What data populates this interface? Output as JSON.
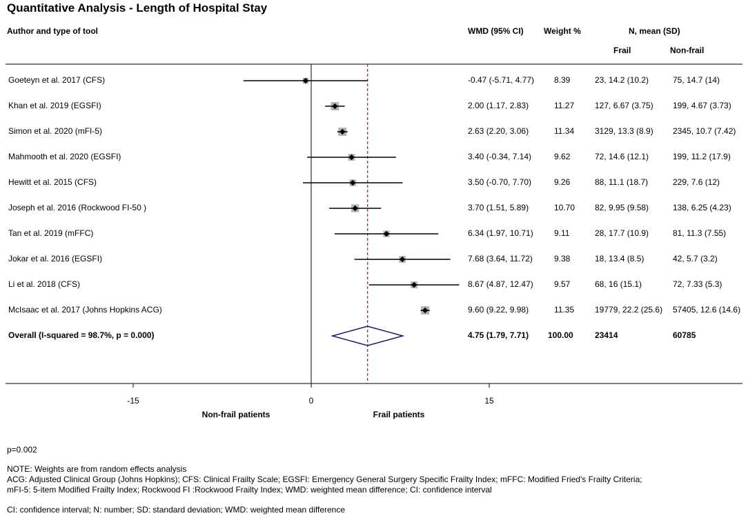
{
  "chart_data": {
    "type": "forest",
    "title": "Quantitative Analysis - Length of Hospital Stay",
    "headers": {
      "author": "Author and type of tool",
      "wmd": "WMD (95% CI)",
      "weight": "Weight %",
      "n_mean": "N, mean (SD)",
      "frail": "Frail",
      "nonfrail": "Non-frail"
    },
    "studies": [
      {
        "label": "Goeteyn et al. 2017 (CFS)",
        "wmd": -0.47,
        "lo": -5.71,
        "hi": 4.77,
        "wmd_text": "-0.47 (-5.71, 4.77)",
        "weight": "8.39",
        "frail": "23, 14.2 (10.2)",
        "nonfrail": "75, 14.7 (14)"
      },
      {
        "label": "Khan et al. 2019 (EGSFI)",
        "wmd": 2.0,
        "lo": 1.17,
        "hi": 2.83,
        "wmd_text": "2.00 (1.17, 2.83)",
        "weight": "11.27",
        "frail": "127, 6.67 (3.75)",
        "nonfrail": "199, 4.67 (3.73)"
      },
      {
        "label": "Simon  et al. 2020 (mFI-5)",
        "wmd": 2.63,
        "lo": 2.2,
        "hi": 3.06,
        "wmd_text": "2.63 (2.20, 3.06)",
        "weight": "11.34",
        "frail": "3129, 13.3 (8.9)",
        "nonfrail": "2345, 10.7 (7.42)"
      },
      {
        "label": "Mahmooth  et al. 2020 (EGSFI)",
        "wmd": 3.4,
        "lo": -0.34,
        "hi": 7.14,
        "wmd_text": "3.40 (-0.34, 7.14)",
        "weight": "9.62",
        "frail": "72, 14.6 (12.1)",
        "nonfrail": "199, 11.2 (17.9)"
      },
      {
        "label": "Hewitt et al. 2015 (CFS)",
        "wmd": 3.5,
        "lo": -0.7,
        "hi": 7.7,
        "wmd_text": "3.50 (-0.70, 7.70)",
        "weight": "9.26",
        "frail": "88, 11.1 (18.7)",
        "nonfrail": "229, 7.6 (12)"
      },
      {
        "label": "Joseph et al. 2016 (Rockwood FI-50 )",
        "wmd": 3.7,
        "lo": 1.51,
        "hi": 5.89,
        "wmd_text": "3.70 (1.51, 5.89)",
        "weight": "10.70",
        "frail": "82, 9.95 (9.58)",
        "nonfrail": "138, 6.25 (4.23)"
      },
      {
        "label": "Tan  et al. 2019 (mFFC)",
        "wmd": 6.34,
        "lo": 1.97,
        "hi": 10.71,
        "wmd_text": "6.34 (1.97, 10.71)",
        "weight": "9.11",
        "frail": "28, 17.7 (10.9)",
        "nonfrail": "81, 11.3 (7.55)"
      },
      {
        "label": "Jokar et al. 2016 (EGSFI)",
        "wmd": 7.68,
        "lo": 3.64,
        "hi": 11.72,
        "wmd_text": "7.68 (3.64, 11.72)",
        "weight": "9.38",
        "frail": "18, 13.4 (8.5)",
        "nonfrail": "42, 5.7 (3.2)"
      },
      {
        "label": "Li  et al. 2018 (CFS)",
        "wmd": 8.67,
        "lo": 4.87,
        "hi": 12.47,
        "wmd_text": "8.67 (4.87, 12.47)",
        "weight": "9.57",
        "frail": "68, 16 (15.1)",
        "nonfrail": "72, 7.33 (5.3)"
      },
      {
        "label": "McIsaac  et al. 2017 (Johns Hopkins ACG)",
        "wmd": 9.6,
        "lo": 9.22,
        "hi": 9.98,
        "wmd_text": "9.60 (9.22, 9.98)",
        "weight": "11.35",
        "frail": "19779, 22.2 (25.6)",
        "nonfrail": "57405, 12.6 (14.6)"
      }
    ],
    "overall": {
      "label": "Overall  (I-squared = 98.7%, p = 0.000)",
      "wmd": 4.75,
      "lo": 1.79,
      "hi": 7.71,
      "wmd_text": "4.75 (1.79, 7.71)",
      "weight": "100.00",
      "frail": "23414",
      "nonfrail": "60785"
    },
    "x_ticks": [
      -15,
      0,
      15
    ],
    "x_tick_labels": [
      "-15",
      "0",
      "15"
    ],
    "xlim": [
      -26.2,
      15.8
    ],
    "left_label": "Non-frail patients",
    "right_label": "Frail patients",
    "line_color": "#1a1a6e",
    "ref_line_color": "#9b1c1c",
    "marker_color": "#000000",
    "box_color": "#a0a0a0"
  },
  "footer": {
    "p_value": "p=0.002",
    "note1": "NOTE: Weights are from random effects analysis",
    "note2": "ACG: Adjusted Clinical Group (Johns Hopkins); CFS: Clinical Frailty Scale; EGSFI: Emergency General Surgery Specific Frailty Index; mFFC: Modified Fried's Frailty Criteria;",
    "note3": "mFI-5: 5-item Modified Frailty Index; Rockwood FI :Rockwood Frailty Index; WMD: weighted mean difference; CI: confidence interval",
    "note4": "CI: confidence interval; N: number; SD: standard deviation; WMD: weighted mean difference"
  }
}
